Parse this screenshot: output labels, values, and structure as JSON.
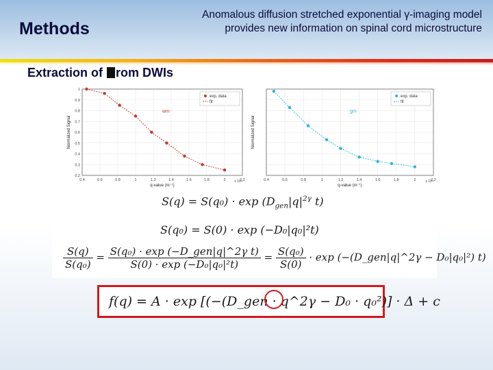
{
  "slide": {
    "section_title": "Methods",
    "headline": "Anomalous diffusion stretched exponential γ-imaging model provides new information on spinal cord microstructure",
    "subtitle_prefix": "Extraction of ",
    "subtitle_glyph": "�",
    "subtitle_suffix": "rom DWIs"
  },
  "colors": {
    "wm": "#c0392b",
    "gm": "#2bb5d8",
    "highlight": "#d11a1a",
    "title": "#0b0b3b"
  },
  "chart_data": [
    {
      "type": "scatter",
      "label": "wm",
      "ylabel": "Normalized Signal",
      "xlabel": "q-value (m⁻¹)",
      "x_exponent": "x 10⁴",
      "xticks": [
        "0.4",
        "0.6",
        "0.8",
        "1",
        "1.2",
        "1.4",
        "1.6",
        "1.8",
        "2",
        "2.2"
      ],
      "yticks": [
        "1",
        "0.9",
        "0.8",
        "0.7",
        "0.6",
        "0.5",
        "0.4",
        "0.3",
        "0.2"
      ],
      "xlim": [
        0.4,
        2.2
      ],
      "ylim": [
        0.2,
        1.0
      ],
      "legend": [
        "exp. data",
        "fit"
      ],
      "legend_position": "top-right",
      "x": [
        0.45,
        0.65,
        0.82,
        1.0,
        1.18,
        1.35,
        1.55,
        1.75,
        2.0
      ],
      "y": [
        1.0,
        0.96,
        0.85,
        0.75,
        0.6,
        0.5,
        0.38,
        0.3,
        0.25
      ]
    },
    {
      "type": "scatter",
      "label": "gm",
      "ylabel": "Normalized Signal",
      "xlabel": "q-value (m⁻¹)",
      "x_exponent": "x 10⁴",
      "xticks": [
        "0.4",
        "0.6",
        "0.8",
        "1",
        "1.2",
        "1.4",
        "1.6",
        "1.8",
        "2",
        "2.2"
      ],
      "xlim": [
        0.4,
        2.2
      ],
      "ylim": [
        0.2,
        1.0
      ],
      "legend": [
        "exp. data",
        "fit"
      ],
      "legend_position": "top-right",
      "x": [
        0.48,
        0.65,
        0.85,
        1.05,
        1.2,
        1.4,
        1.6,
        1.75,
        2.0
      ],
      "y": [
        0.98,
        0.83,
        0.66,
        0.53,
        0.45,
        0.37,
        0.33,
        0.31,
        0.28
      ]
    }
  ],
  "equations": {
    "eq1_lhs": "S(q) = S(q₀) · exp (",
    "eq1_rhs": "D",
    "eq1_sub": "gen",
    "eq1_tail": "|q|",
    "eq1_sup": "2γ",
    "eq1_end": " t)",
    "eq2": "S(q₀) = S(0) · exp (−D₀|q₀|²t)",
    "eq3_lhs_num": "S(q)",
    "eq3_lhs_den": "S(q₀)",
    "eq3_mid_num": "S(q₀) · exp (−D_gen|q|^2γ t)",
    "eq3_mid_den": "S(0) · exp (−D₀|q₀|²t)",
    "eq3_r_num": "S(q₀)",
    "eq3_r_den": "S(0)",
    "eq3_tail": "· exp (−(D_gen|q|^2γ − D₀|q₀|²) t)",
    "eq4": "f(q) = A · exp [(−(D_gen · q^2γ − D₀ · q₀²)] · Δ + c"
  }
}
